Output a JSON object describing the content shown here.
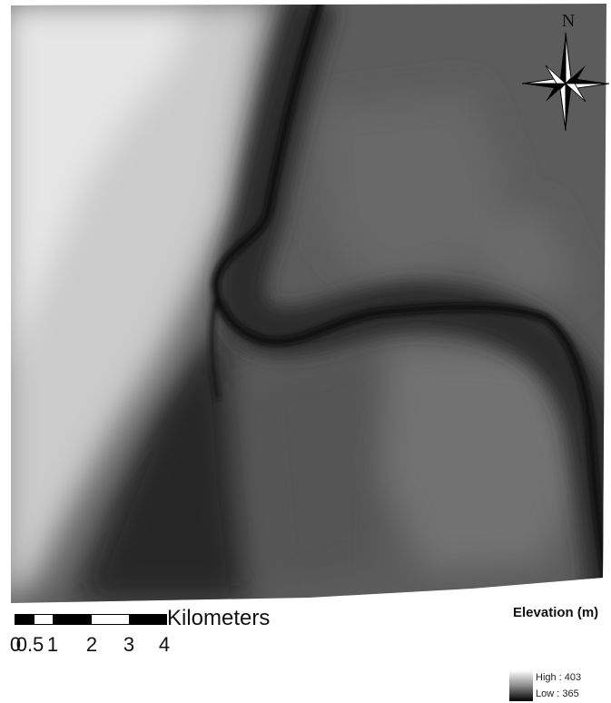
{
  "map": {
    "north_label": "N",
    "icons": {
      "north_arrow": "compass-rose-icon"
    },
    "scale_bar": {
      "unit": "Kilometers",
      "ticks": [
        "0",
        "0.5",
        "1",
        "2",
        "3",
        "4"
      ]
    },
    "legend": {
      "title": "Elevation (m)",
      "high_label": "High : 403",
      "low_label": "Low : 365",
      "ramp_colors": [
        "#ffffff",
        "#000000"
      ]
    }
  }
}
